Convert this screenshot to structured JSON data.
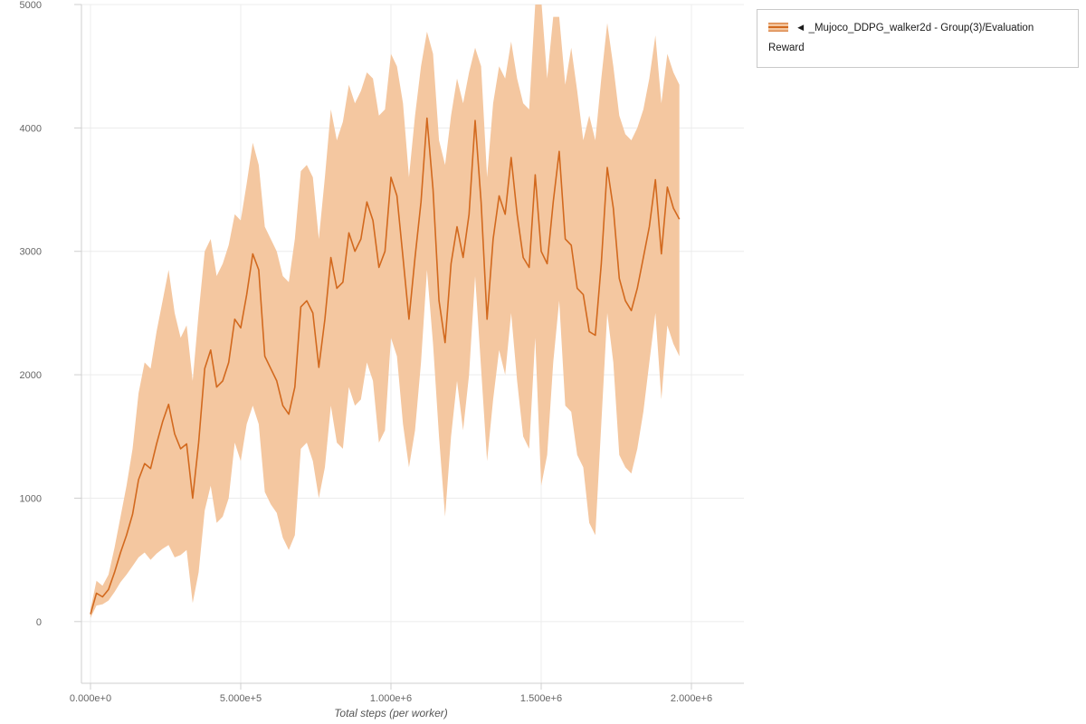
{
  "page": {
    "background": "#ffffff"
  },
  "legend": {
    "items": [
      {
        "label": "◄ _Mujoco_DDPG_walker2d - Group(3)/Evaluation Reward",
        "line_color": "#d2691e",
        "band_color": "#f4c7a0",
        "band_edge_color": "#dd8a4d"
      }
    ]
  },
  "chart_data": {
    "type": "line",
    "title": "",
    "xlabel": "Total steps (per worker)",
    "ylabel": "",
    "xlim": [
      0,
      2000000
    ],
    "ylim": [
      -500,
      5000
    ],
    "grid": true,
    "legend_position": "top-right",
    "grid_color": "#ececec",
    "axis_color": "#cfcfcf",
    "tick_label_color": "#666666",
    "xticks": {
      "values": [
        0,
        500000,
        1000000,
        1500000,
        2000000
      ],
      "labels": [
        "0.000e+0",
        "5.000e+5",
        "1.000e+6",
        "1.500e+6",
        "2.000e+6"
      ]
    },
    "yticks": {
      "values": [
        0,
        1000,
        2000,
        3000,
        4000,
        5000
      ],
      "labels": [
        "0",
        "1000",
        "2000",
        "3000",
        "4000",
        "5000"
      ]
    },
    "series": [
      {
        "name": "_Mujoco_DDPG_walker2d - Group(3)/Evaluation Reward",
        "color": "#d2691e",
        "band_color": "#f4c7a0",
        "x": [
          0,
          20000,
          40000,
          60000,
          80000,
          100000,
          120000,
          140000,
          160000,
          180000,
          200000,
          220000,
          240000,
          260000,
          280000,
          300000,
          320000,
          340000,
          360000,
          380000,
          400000,
          420000,
          440000,
          460000,
          480000,
          500000,
          520000,
          540000,
          560000,
          580000,
          600000,
          620000,
          640000,
          660000,
          680000,
          700000,
          720000,
          740000,
          760000,
          780000,
          800000,
          820000,
          840000,
          860000,
          880000,
          900000,
          920000,
          940000,
          960000,
          980000,
          1000000,
          1020000,
          1040000,
          1060000,
          1080000,
          1100000,
          1120000,
          1140000,
          1160000,
          1180000,
          1200000,
          1220000,
          1240000,
          1260000,
          1280000,
          1300000,
          1320000,
          1340000,
          1360000,
          1380000,
          1400000,
          1420000,
          1440000,
          1460000,
          1480000,
          1500000,
          1520000,
          1540000,
          1560000,
          1580000,
          1600000,
          1620000,
          1640000,
          1660000,
          1680000,
          1700000,
          1720000,
          1740000,
          1760000,
          1780000,
          1800000,
          1820000,
          1840000,
          1860000,
          1880000,
          1900000,
          1920000,
          1940000,
          1960000
        ],
        "mean": [
          60,
          230,
          200,
          260,
          400,
          560,
          700,
          870,
          1150,
          1280,
          1240,
          1440,
          1620,
          1760,
          1520,
          1400,
          1440,
          1000,
          1450,
          2050,
          2200,
          1900,
          1950,
          2100,
          2450,
          2380,
          2650,
          2980,
          2850,
          2150,
          2050,
          1950,
          1750,
          1680,
          1900,
          2550,
          2600,
          2500,
          2060,
          2450,
          2950,
          2700,
          2750,
          3150,
          3000,
          3100,
          3400,
          3250,
          2870,
          3000,
          3600,
          3450,
          2950,
          2450,
          2950,
          3400,
          4080,
          3500,
          2600,
          2260,
          2900,
          3200,
          2950,
          3300,
          4060,
          3400,
          2450,
          3100,
          3450,
          3300,
          3760,
          3300,
          2950,
          2870,
          3620,
          3000,
          2900,
          3400,
          3810,
          3100,
          3050,
          2700,
          2650,
          2350,
          2320,
          2900,
          3680,
          3350,
          2780,
          2600,
          2520,
          2700,
          2950,
          3200,
          3580,
          2980,
          3520,
          3350,
          3260
        ],
        "lower": [
          30,
          130,
          140,
          170,
          240,
          320,
          380,
          450,
          520,
          560,
          500,
          550,
          590,
          620,
          520,
          540,
          580,
          150,
          400,
          900,
          1100,
          800,
          850,
          1000,
          1450,
          1300,
          1600,
          1750,
          1600,
          1050,
          950,
          880,
          680,
          580,
          700,
          1400,
          1450,
          1300,
          1000,
          1250,
          1750,
          1450,
          1400,
          1900,
          1750,
          1800,
          2100,
          1950,
          1450,
          1550,
          2300,
          2150,
          1600,
          1250,
          1550,
          2100,
          2850,
          2250,
          1500,
          850,
          1500,
          1950,
          1550,
          2000,
          2800,
          2050,
          1300,
          1800,
          2200,
          2000,
          2500,
          1950,
          1500,
          1400,
          2300,
          1100,
          1350,
          2100,
          2600,
          1750,
          1700,
          1350,
          1250,
          800,
          700,
          1600,
          2500,
          2100,
          1350,
          1250,
          1200,
          1400,
          1700,
          2100,
          2500,
          1800,
          2400,
          2250,
          2150
        ],
        "upper": [
          100,
          330,
          290,
          380,
          600,
          850,
          1100,
          1400,
          1850,
          2100,
          2050,
          2350,
          2600,
          2850,
          2500,
          2300,
          2400,
          1950,
          2500,
          3000,
          3100,
          2800,
          2900,
          3050,
          3300,
          3250,
          3550,
          3880,
          3700,
          3200,
          3100,
          3000,
          2800,
          2750,
          3100,
          3650,
          3700,
          3600,
          3100,
          3600,
          4150,
          3900,
          4050,
          4350,
          4200,
          4300,
          4450,
          4400,
          4100,
          4150,
          4600,
          4500,
          4200,
          3600,
          4100,
          4500,
          4780,
          4600,
          3900,
          3700,
          4100,
          4400,
          4200,
          4450,
          4650,
          4500,
          3600,
          4200,
          4500,
          4400,
          4700,
          4400,
          4200,
          4150,
          5000,
          5050,
          4400,
          4900,
          4900,
          4350,
          4650,
          4300,
          3900,
          4100,
          3900,
          4400,
          4850,
          4500,
          4100,
          3950,
          3900,
          4000,
          4150,
          4400,
          4750,
          4200,
          4600,
          4450,
          4350
        ]
      }
    ]
  }
}
